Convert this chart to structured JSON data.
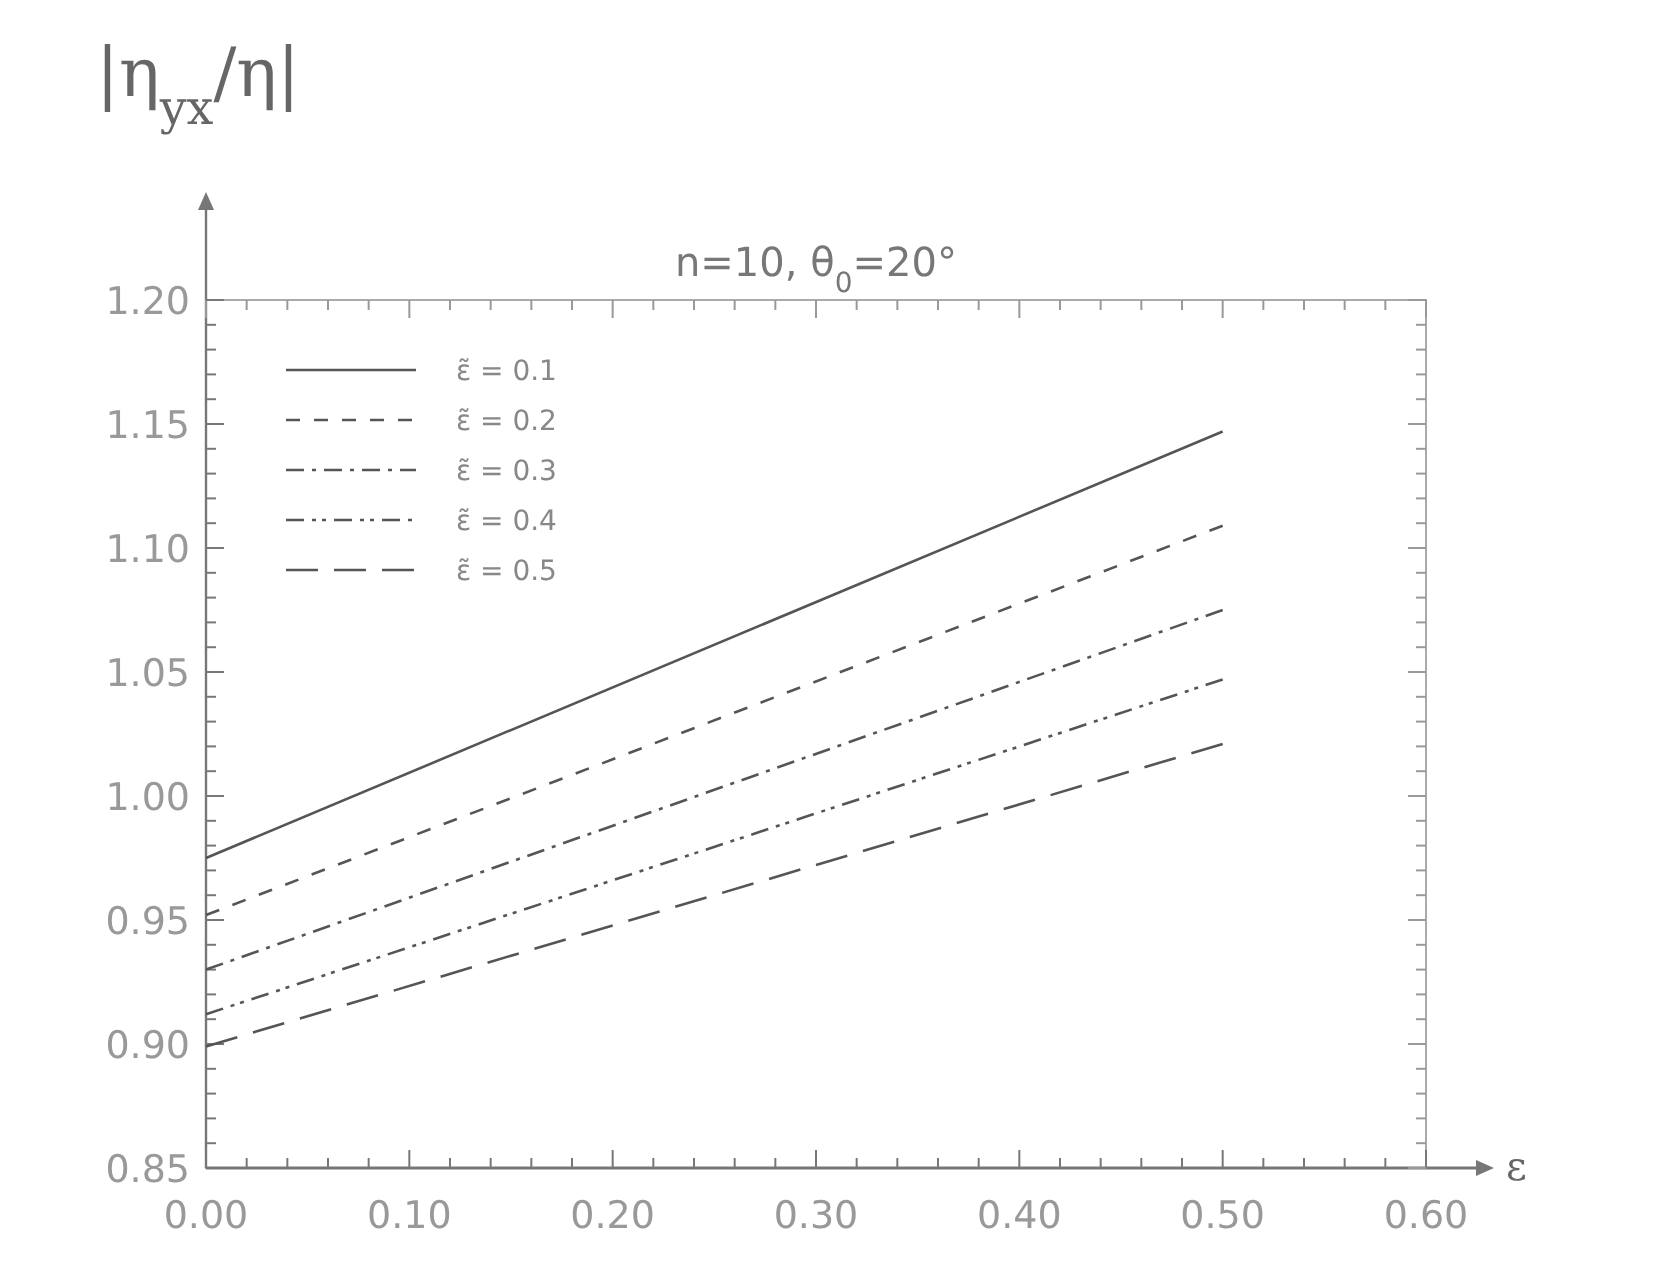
{
  "chart_data": {
    "type": "line",
    "title": "n=10,  θ$_{0}$=20°",
    "xlabel": "ε",
    "ylabel": "|η$_{yx}$/η|",
    "x": [
      0,
      0.5
    ],
    "series": [
      {
        "name": "ε̃ = 0.1",
        "color": "#555555",
        "line_style": "solid",
        "values": [
          0.975,
          1.147
        ]
      },
      {
        "name": "ε̃ = 0.2",
        "color": "#555555",
        "line_style": "dashed",
        "values": [
          0.952,
          1.109
        ]
      },
      {
        "name": "ε̃ = 0.3",
        "color": "#555555",
        "line_style": "dashed",
        "values": [
          0.93,
          1.075
        ]
      },
      {
        "name": "ε̃ = 0.4",
        "color": "#555555",
        "line_style": "dashed",
        "values": [
          0.912,
          1.047
        ]
      },
      {
        "name": "ε̃ = 0.5",
        "color": "#555555",
        "line_style": "dashed",
        "values": [
          0.899,
          1.021
        ]
      }
    ],
    "xlim": [
      0,
      0.6
    ],
    "xticks": [
      {
        "value": 0,
        "label": "0.00"
      },
      {
        "value": 0.02,
        "label": null
      },
      {
        "value": 0.04,
        "label": null
      },
      {
        "value": 0.06,
        "label": null
      },
      {
        "value": 0.08,
        "label": null
      },
      {
        "value": 0.1,
        "label": "0.10"
      },
      {
        "value": 0.12,
        "label": null
      },
      {
        "value": 0.14,
        "label": null
      },
      {
        "value": 0.16,
        "label": null
      },
      {
        "value": 0.18,
        "label": null
      },
      {
        "value": 0.2,
        "label": "0.20"
      },
      {
        "value": 0.22,
        "label": null
      },
      {
        "value": 0.24,
        "label": null
      },
      {
        "value": 0.26,
        "label": null
      },
      {
        "value": 0.28,
        "label": null
      },
      {
        "value": 0.3,
        "label": "0.30"
      },
      {
        "value": 0.32,
        "label": null
      },
      {
        "value": 0.34,
        "label": null
      },
      {
        "value": 0.36,
        "label": null
      },
      {
        "value": 0.38,
        "label": null
      },
      {
        "value": 0.4,
        "label": "0.40"
      },
      {
        "value": 0.42,
        "label": null
      },
      {
        "value": 0.44,
        "label": null
      },
      {
        "value": 0.46,
        "label": null
      },
      {
        "value": 0.48,
        "label": null
      },
      {
        "value": 0.5,
        "label": "0.50"
      },
      {
        "value": 0.52,
        "label": null
      },
      {
        "value": 0.54,
        "label": null
      },
      {
        "value": 0.56,
        "label": null
      },
      {
        "value": 0.58,
        "label": null
      },
      {
        "value": 0.6,
        "label": "0.60"
      }
    ],
    "ylim": [
      0.85,
      1.2
    ],
    "yticks": [
      {
        "value": 0.85,
        "label": "0.85"
      },
      {
        "value": 0.86,
        "label": null
      },
      {
        "value": 0.87,
        "label": null
      },
      {
        "value": 0.88,
        "label": null
      },
      {
        "value": 0.89,
        "label": null
      },
      {
        "value": 0.9,
        "label": "0.90"
      },
      {
        "value": 0.91,
        "label": null
      },
      {
        "value": 0.92,
        "label": null
      },
      {
        "value": 0.93,
        "label": null
      },
      {
        "value": 0.94,
        "label": null
      },
      {
        "value": 0.95,
        "label": "0.95"
      },
      {
        "value": 0.96,
        "label": null
      },
      {
        "value": 0.97,
        "label": null
      },
      {
        "value": 0.98,
        "label": null
      },
      {
        "value": 0.99,
        "label": null
      },
      {
        "value": 1.0,
        "label": "1.00"
      },
      {
        "value": 1.01,
        "label": null
      },
      {
        "value": 1.02,
        "label": null
      },
      {
        "value": 1.03,
        "label": null
      },
      {
        "value": 1.04,
        "label": null
      },
      {
        "value": 1.05,
        "label": "1.05"
      },
      {
        "value": 1.06,
        "label": null
      },
      {
        "value": 1.07,
        "label": null
      },
      {
        "value": 1.08,
        "label": null
      },
      {
        "value": 1.09,
        "label": null
      },
      {
        "value": 1.1,
        "label": "1.10"
      },
      {
        "value": 1.11,
        "label": null
      },
      {
        "value": 1.12,
        "label": null
      },
      {
        "value": 1.13,
        "label": null
      },
      {
        "value": 1.14,
        "label": null
      },
      {
        "value": 1.15,
        "label": "1.15"
      },
      {
        "value": 1.16,
        "label": null
      },
      {
        "value": 1.17,
        "label": null
      },
      {
        "value": 1.18,
        "label": null
      },
      {
        "value": 1.19,
        "label": null
      },
      {
        "value": 1.2,
        "label": "1.20"
      }
    ],
    "legend": "top left",
    "grid": false
  }
}
